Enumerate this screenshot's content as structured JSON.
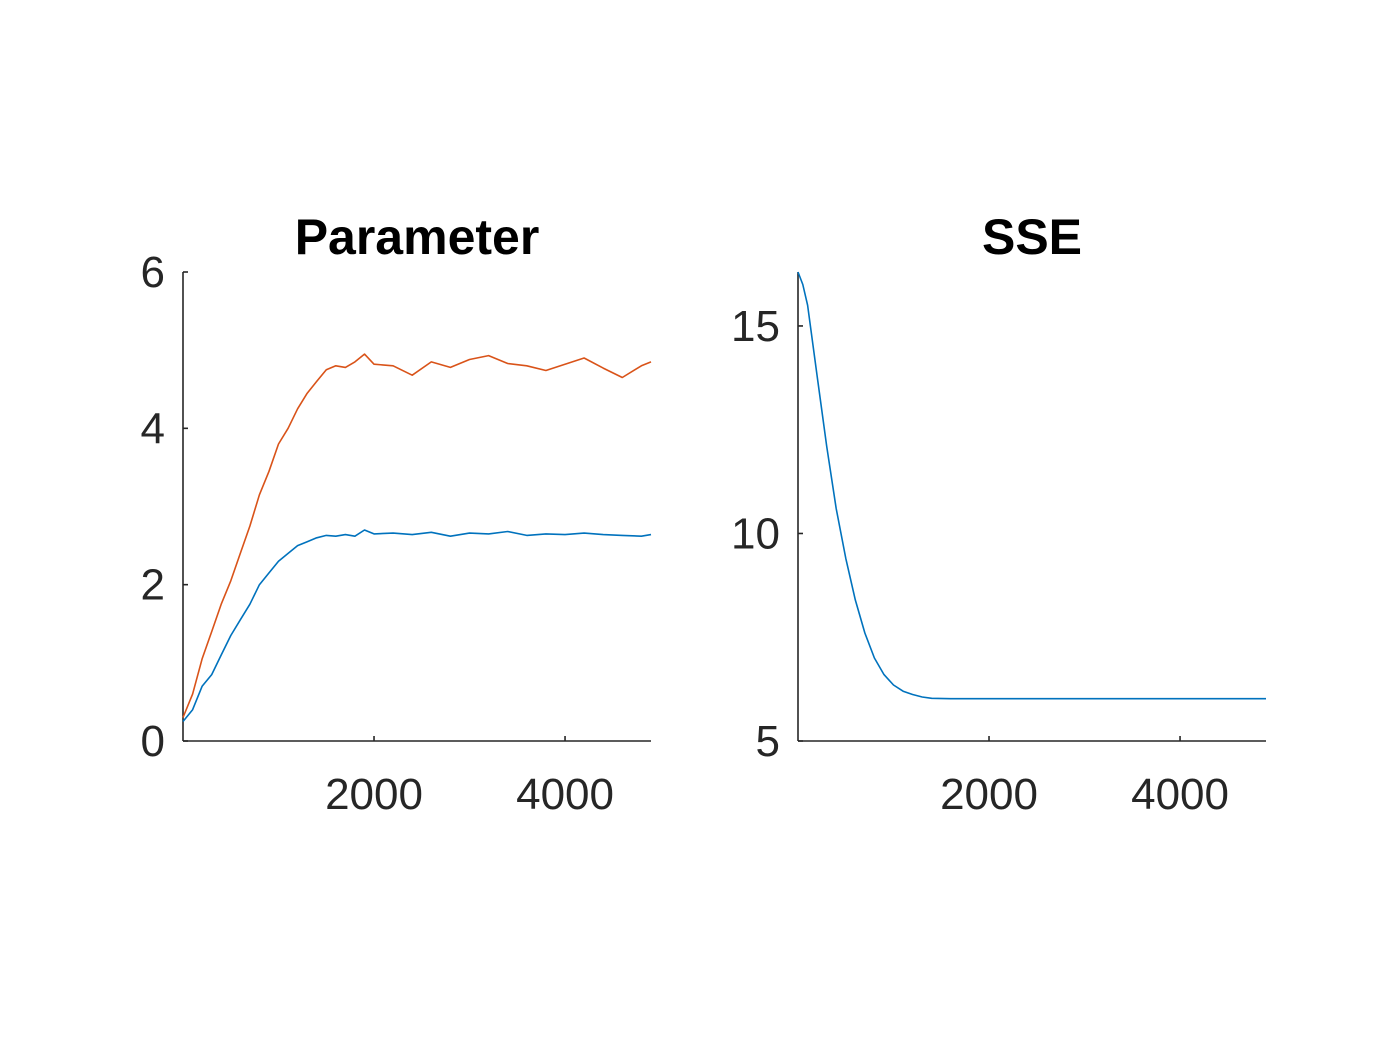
{
  "chart_data": [
    {
      "type": "line",
      "title": "Parameter",
      "xlabel": "",
      "ylabel": "",
      "xlim": [
        0,
        4900
      ],
      "ylim": [
        0,
        6
      ],
      "xticks": [
        2000,
        4000
      ],
      "yticks": [
        0,
        2,
        4,
        6
      ],
      "grid": false,
      "series": [
        {
          "color": "#0072BD",
          "x": [
            0,
            100,
            200,
            300,
            400,
            500,
            600,
            700,
            800,
            900,
            1000,
            1100,
            1200,
            1300,
            1400,
            1500,
            1600,
            1700,
            1800,
            1900,
            2000,
            2200,
            2400,
            2600,
            2800,
            3000,
            3200,
            3400,
            3600,
            3800,
            4000,
            4200,
            4400,
            4600,
            4800,
            4900
          ],
          "y": [
            0.25,
            0.4,
            0.7,
            0.85,
            1.1,
            1.35,
            1.55,
            1.75,
            2.0,
            2.15,
            2.3,
            2.4,
            2.5,
            2.55,
            2.6,
            2.63,
            2.62,
            2.64,
            2.62,
            2.7,
            2.65,
            2.66,
            2.64,
            2.67,
            2.62,
            2.66,
            2.65,
            2.68,
            2.63,
            2.65,
            2.64,
            2.66,
            2.64,
            2.63,
            2.62,
            2.64
          ]
        },
        {
          "color": "#D95319",
          "x": [
            0,
            100,
            200,
            300,
            400,
            500,
            600,
            700,
            800,
            900,
            1000,
            1100,
            1200,
            1300,
            1400,
            1500,
            1600,
            1700,
            1800,
            1900,
            2000,
            2200,
            2400,
            2600,
            2800,
            3000,
            3200,
            3400,
            3600,
            3800,
            4000,
            4200,
            4400,
            4600,
            4800,
            4900
          ],
          "y": [
            0.3,
            0.6,
            1.05,
            1.4,
            1.75,
            2.05,
            2.4,
            2.75,
            3.15,
            3.45,
            3.8,
            4.0,
            4.25,
            4.45,
            4.6,
            4.75,
            4.8,
            4.78,
            4.85,
            4.95,
            4.82,
            4.8,
            4.68,
            4.85,
            4.78,
            4.88,
            4.93,
            4.83,
            4.8,
            4.74,
            4.82,
            4.9,
            4.77,
            4.65,
            4.8,
            4.85
          ]
        }
      ]
    },
    {
      "type": "line",
      "title": "SSE",
      "xlabel": "",
      "ylabel": "",
      "xlim": [
        0,
        4900
      ],
      "ylim": [
        5,
        16.3
      ],
      "xticks": [
        2000,
        4000
      ],
      "yticks": [
        5,
        10,
        15
      ],
      "grid": false,
      "series": [
        {
          "color": "#0072BD",
          "x": [
            0,
            50,
            100,
            200,
            300,
            400,
            500,
            600,
            700,
            800,
            900,
            1000,
            1100,
            1200,
            1300,
            1400,
            1600,
            1800,
            2000,
            2500,
            3000,
            3500,
            4000,
            4500,
            4900
          ],
          "y": [
            16.3,
            16.0,
            15.5,
            13.8,
            12.1,
            10.6,
            9.4,
            8.4,
            7.6,
            7.0,
            6.6,
            6.35,
            6.2,
            6.12,
            6.06,
            6.03,
            6.02,
            6.02,
            6.02,
            6.02,
            6.02,
            6.02,
            6.02,
            6.02,
            6.02
          ]
        }
      ]
    }
  ]
}
